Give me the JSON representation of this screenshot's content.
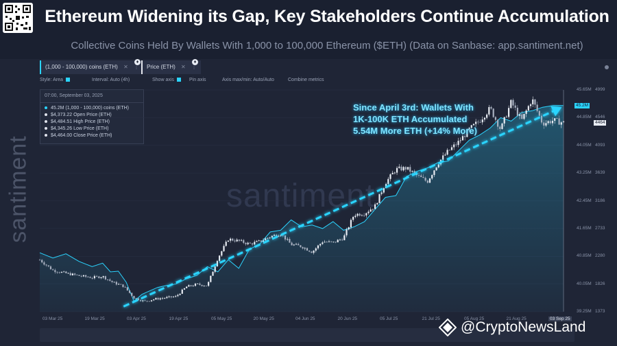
{
  "header": {
    "title": "Ethereum Widening its Gap, Key Stakeholders Continue Accumulation",
    "subtitle": "Collective Coins Held By Wallets With 1,000 to 100,000 Ethereum ($ETH) (Data on Sanbase: app.santiment.net)"
  },
  "metrics": [
    {
      "label": "(1,000 - 100,000) coins (ETH)",
      "color": "#2bd4ff"
    },
    {
      "label": "Price (ETH)",
      "color": "#e6e8ee"
    }
  ],
  "toolbar": {
    "style": "Style: Area",
    "interval": "Interval: Auto (4h)",
    "show_axis": "Show axis",
    "pin_axis": "Pin axis",
    "axis_minmax": "Axis max/min: Auto/Auto",
    "combine": "Combine metrics"
  },
  "tooltip": {
    "time": "07:00, September 03, 2025",
    "rows": [
      "45.2M (1,000 - 100,000) coins (ETH)",
      "$4,373.22 Open Price (ETH)",
      "$4,484.51 High Price (ETH)",
      "$4,345.26 Low Price (ETH)",
      "$4,464.00 Close Price (ETH)"
    ]
  },
  "brand": {
    "side": "santiment",
    "watermark": "santiment"
  },
  "annotation": {
    "lines": [
      "Since April 3rd: Wallets With",
      "1K-100K ETH Accumulated",
      "5.54M More ETH (+14% More)"
    ]
  },
  "credit": {
    "text": "@CryptoNewsLand"
  },
  "colors": {
    "holdings": "#2bd4ff",
    "price_up": "#e8ecf3",
    "price_down": "#a8b0c0",
    "trend": "#2bd4ff",
    "background": "#1f2536"
  },
  "chart_data": {
    "type": "line",
    "x_ticks": [
      "03 Mar 25",
      "19 Mar 25",
      "03 Apr 25",
      "19 Apr 25",
      "05 May 25",
      "20 May 25",
      "04 Jun 25",
      "20 Jun 25",
      "05 Jul 25",
      "21 Jul 25",
      "05 Aug 25",
      "21 Aug 25",
      "03 Sep 25"
    ],
    "holdings_axis": {
      "ticks": [
        "45.65M",
        "44.85M",
        "44.05M",
        "43.25M",
        "42.45M",
        "41.65M",
        "40.85M",
        "40.05M",
        "39.25M"
      ],
      "min": 39.25,
      "max": 45.65,
      "unit": "M ETH",
      "current_label": "45.2M"
    },
    "price_axis": {
      "ticks": [
        "4999",
        "4546",
        "4093",
        "3639",
        "3186",
        "2733",
        "2280",
        "1826",
        "1373"
      ],
      "min": 1373,
      "max": 4999,
      "unit": "USD",
      "current_label": "4464"
    },
    "series": [
      {
        "name": "(1,000 - 100,000) coins (ETH)",
        "axis": "holdings",
        "style": "area",
        "points": [
          [
            0,
            40.95
          ],
          [
            0.025,
            40.8
          ],
          [
            0.05,
            40.92
          ],
          [
            0.075,
            40.7
          ],
          [
            0.1,
            40.55
          ],
          [
            0.12,
            40.65
          ],
          [
            0.135,
            40.4
          ],
          [
            0.15,
            40.42
          ],
          [
            0.165,
            40.1
          ],
          [
            0.18,
            39.55
          ],
          [
            0.195,
            39.75
          ],
          [
            0.21,
            39.85
          ],
          [
            0.225,
            39.95
          ],
          [
            0.24,
            40.0
          ],
          [
            0.26,
            40.05
          ],
          [
            0.28,
            40.2
          ],
          [
            0.3,
            40.3
          ],
          [
            0.32,
            40.55
          ],
          [
            0.34,
            40.4
          ],
          [
            0.36,
            40.75
          ],
          [
            0.38,
            40.5
          ],
          [
            0.4,
            41.05
          ],
          [
            0.42,
            41.2
          ],
          [
            0.44,
            41.55
          ],
          [
            0.46,
            41.6
          ],
          [
            0.48,
            41.9
          ],
          [
            0.5,
            41.7
          ],
          [
            0.52,
            41.75
          ],
          [
            0.54,
            41.65
          ],
          [
            0.56,
            41.85
          ],
          [
            0.58,
            41.6
          ],
          [
            0.6,
            41.7
          ],
          [
            0.62,
            41.85
          ],
          [
            0.64,
            42.2
          ],
          [
            0.66,
            42.55
          ],
          [
            0.68,
            42.6
          ],
          [
            0.7,
            43.15
          ],
          [
            0.72,
            43.3
          ],
          [
            0.74,
            43.4
          ],
          [
            0.76,
            43.55
          ],
          [
            0.78,
            43.6
          ],
          [
            0.8,
            43.9
          ],
          [
            0.82,
            44.2
          ],
          [
            0.84,
            44.35
          ],
          [
            0.86,
            44.55
          ],
          [
            0.88,
            44.85
          ],
          [
            0.9,
            44.75
          ],
          [
            0.92,
            45.0
          ],
          [
            0.94,
            45.05
          ],
          [
            0.96,
            45.15
          ],
          [
            0.98,
            45.2
          ],
          [
            1.0,
            45.2
          ]
        ]
      },
      {
        "name": "Price (ETH)",
        "axis": "price",
        "style": "candlestick",
        "points": [
          [
            0,
            2220
          ],
          [
            0.025,
            2050
          ],
          [
            0.05,
            2000
          ],
          [
            0.075,
            1960
          ],
          [
            0.1,
            1930
          ],
          [
            0.12,
            1950
          ],
          [
            0.14,
            1850
          ],
          [
            0.16,
            1790
          ],
          [
            0.18,
            1600
          ],
          [
            0.2,
            1540
          ],
          [
            0.22,
            1580
          ],
          [
            0.24,
            1600
          ],
          [
            0.26,
            1620
          ],
          [
            0.28,
            1780
          ],
          [
            0.3,
            1820
          ],
          [
            0.32,
            1800
          ],
          [
            0.34,
            2250
          ],
          [
            0.36,
            2560
          ],
          [
            0.38,
            2530
          ],
          [
            0.4,
            2480
          ],
          [
            0.42,
            2520
          ],
          [
            0.44,
            2600
          ],
          [
            0.46,
            2650
          ],
          [
            0.48,
            2470
          ],
          [
            0.5,
            2440
          ],
          [
            0.52,
            2350
          ],
          [
            0.54,
            2520
          ],
          [
            0.56,
            2500
          ],
          [
            0.58,
            2580
          ],
          [
            0.6,
            2960
          ],
          [
            0.62,
            2980
          ],
          [
            0.64,
            3100
          ],
          [
            0.66,
            3480
          ],
          [
            0.68,
            3700
          ],
          [
            0.7,
            3720
          ],
          [
            0.72,
            3600
          ],
          [
            0.74,
            3500
          ],
          [
            0.76,
            3800
          ],
          [
            0.78,
            4000
          ],
          [
            0.8,
            4150
          ],
          [
            0.82,
            4350
          ],
          [
            0.84,
            4500
          ],
          [
            0.86,
            4700
          ],
          [
            0.88,
            4350
          ],
          [
            0.9,
            4800
          ],
          [
            0.92,
            4500
          ],
          [
            0.94,
            4850
          ],
          [
            0.96,
            4450
          ],
          [
            0.98,
            4500
          ],
          [
            1.0,
            4464
          ]
        ]
      }
    ],
    "trendline": {
      "from": [
        0.16,
        39.4
      ],
      "to": [
        1.0,
        45.1
      ],
      "style": "dashed"
    }
  }
}
